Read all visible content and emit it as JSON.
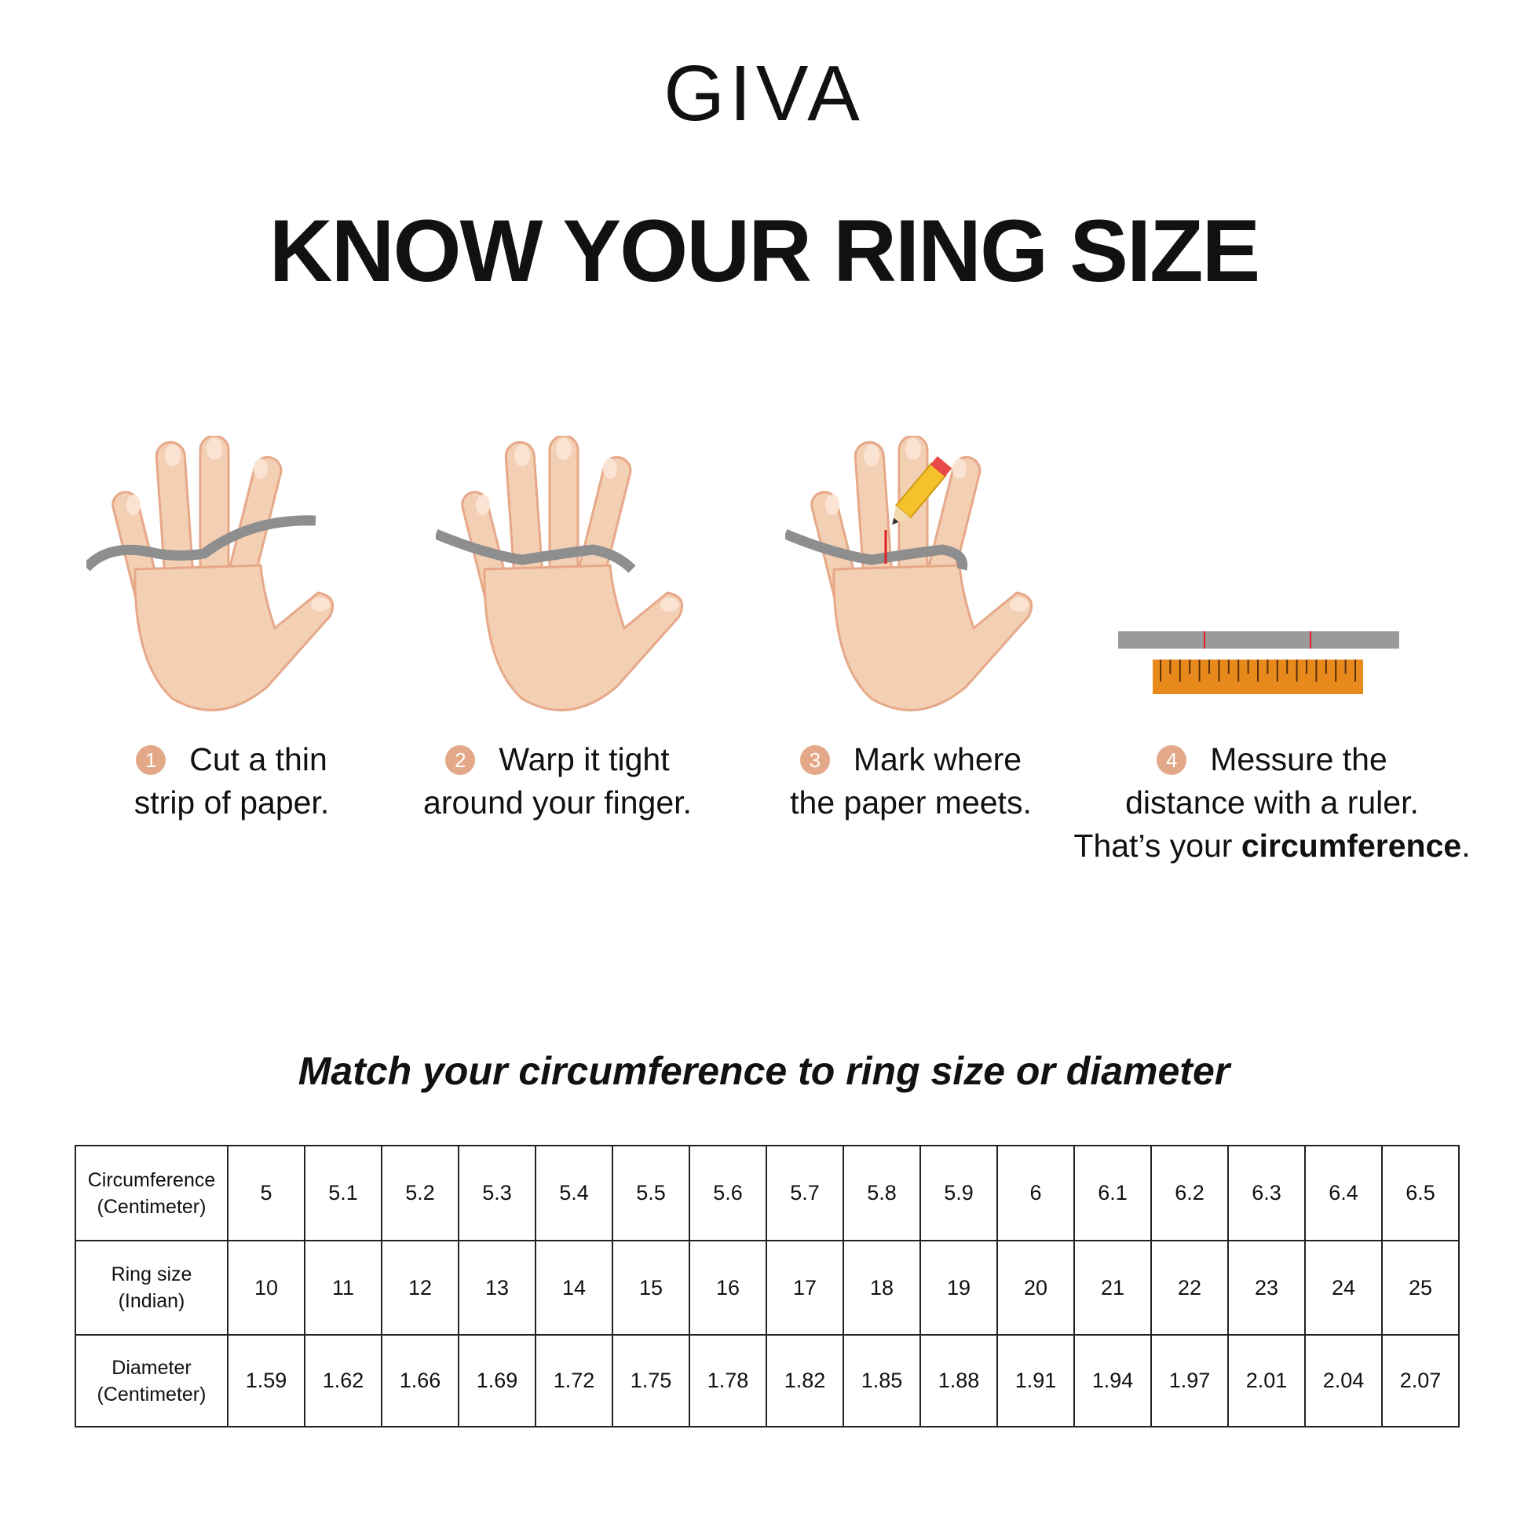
{
  "brand": "GIVA",
  "title": "KNOW YOUR RING SIZE",
  "steps": [
    {
      "number": "1",
      "line1": "Cut a thin",
      "line2": "strip of paper.",
      "icon": "hand-with-paper-strip-icon"
    },
    {
      "number": "2",
      "line1": "Warp it tight",
      "line2": "around your finger.",
      "icon": "hand-wrapped-finger-icon"
    },
    {
      "number": "3",
      "line1": "Mark where",
      "line2": "the paper meets.",
      "icon": "hand-pencil-mark-icon"
    },
    {
      "number": "4",
      "line1": "Messure the",
      "line2": "distance with a ruler.",
      "line3_pre": "That’s your ",
      "line3_bold": "circumference",
      "line3_post": ".",
      "icon": "ruler-icon"
    }
  ],
  "subtitle": "Match your circumference to ring size or diameter",
  "table": {
    "rows": [
      {
        "header1": "Circumference",
        "header2": "(Centimeter)",
        "values": [
          "5",
          "5.1",
          "5.2",
          "5.3",
          "5.4",
          "5.5",
          "5.6",
          "5.7",
          "5.8",
          "5.9",
          "6",
          "6.1",
          "6.2",
          "6.3",
          "6.4",
          "6.5"
        ]
      },
      {
        "header1": "Ring size",
        "header2": "(Indian)",
        "values": [
          "10",
          "11",
          "12",
          "13",
          "14",
          "15",
          "16",
          "17",
          "18",
          "19",
          "20",
          "21",
          "22",
          "23",
          "24",
          "25"
        ]
      },
      {
        "header1": "Diameter",
        "header2": "(Centimeter)",
        "values": [
          "1.59",
          "1.62",
          "1.66",
          "1.69",
          "1.72",
          "1.75",
          "1.78",
          "1.82",
          "1.85",
          "1.88",
          "1.91",
          "1.94",
          "1.97",
          "2.01",
          "2.04",
          "2.07"
        ]
      }
    ]
  },
  "colors": {
    "skin": "#f3cfb4",
    "skin_shadow": "#e6a888",
    "strip": "#8e8e8e",
    "step_badge": "#e2a887",
    "ruler": "#e8891c"
  }
}
